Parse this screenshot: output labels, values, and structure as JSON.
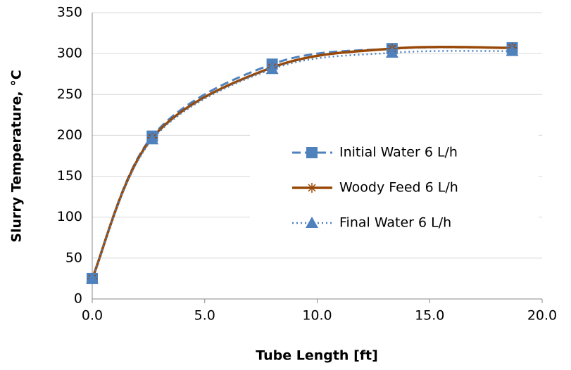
{
  "chart_data": {
    "type": "scatter",
    "x_label": "Tube Length [ft]",
    "y_label": "Slurry Temperature, °C",
    "x": [
      0,
      2.67,
      8,
      13.33,
      18.67
    ],
    "series": [
      {
        "name": "Initial Water 6 L/h",
        "color": "#4f81bd",
        "line": "dashed",
        "marker": "square",
        "values": [
          25,
          199,
          287,
          306,
          307
        ]
      },
      {
        "name": "Woody Feed 6 L/h",
        "color": "#984807",
        "line": "solid",
        "marker": "star",
        "values": [
          25,
          197,
          283,
          306,
          307
        ]
      },
      {
        "name": "Final Water 6 L/h",
        "color": "#4f81bd",
        "line": "dotted",
        "marker": "triangle",
        "values": [
          25,
          195,
          281,
          301,
          303
        ]
      }
    ],
    "xlim": [
      0,
      20
    ],
    "xticks": [
      {
        "value": 0,
        "label": "0.0"
      },
      {
        "value": 5,
        "label": "5.0"
      },
      {
        "value": 10,
        "label": "10.0"
      },
      {
        "value": 15,
        "label": "15.0"
      },
      {
        "value": 20,
        "label": "20.0"
      }
    ],
    "ylim": [
      0,
      350
    ],
    "yticks": [
      0,
      50,
      100,
      150,
      200,
      250,
      300,
      350
    ],
    "grid": true,
    "legend": "center-right"
  }
}
